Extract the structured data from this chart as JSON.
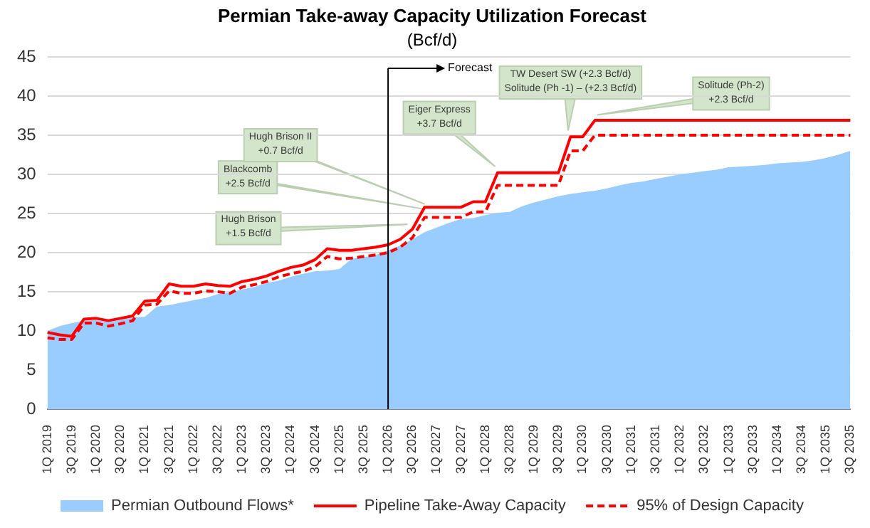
{
  "chart_data": {
    "type": "line",
    "title": "Permian Take-away Capacity Utilization Forecast",
    "subtitle": "(Bcf/d)",
    "categories": [
      "1Q 2019",
      null,
      "3Q 2019",
      null,
      "1Q 2020",
      null,
      "3Q 2020",
      null,
      "1Q 2021",
      null,
      "3Q 2021",
      null,
      "1Q 2022",
      null,
      "3Q 2022",
      null,
      "1Q 2023",
      null,
      "3Q 2023",
      null,
      "1Q 2024",
      null,
      "3Q 2024",
      null,
      "1Q 2025",
      null,
      "3Q 2025",
      null,
      "1Q 2026",
      null,
      "3Q 2026",
      null,
      "1Q 2027",
      null,
      "3Q 2027",
      null,
      "1Q 2028",
      null,
      "3Q 2028",
      null,
      "1Q 2029",
      null,
      "3Q 2029",
      null,
      "1Q 2030",
      null,
      "3Q 2030",
      null,
      "1Q 2031",
      null,
      "3Q 2031",
      null,
      "1Q 2032",
      null,
      "3Q 2032",
      null,
      "1Q 2033",
      null,
      "3Q 2033",
      null,
      "1Q 2034",
      null,
      "3Q 2034",
      null,
      "1Q 2035",
      null,
      "3Q 2035"
    ],
    "series": [
      {
        "name": "Permian Outbound Flows*",
        "type": "area",
        "color": "#99ccff",
        "values": [
          10.0,
          10.6,
          11.0,
          11.3,
          11.4,
          11.1,
          11.4,
          11.7,
          11.8,
          13.1,
          13.3,
          13.6,
          13.9,
          14.2,
          14.7,
          14.9,
          15.3,
          15.6,
          16.1,
          16.4,
          16.9,
          17.3,
          17.6,
          17.7,
          17.9,
          19.2,
          19.4,
          19.7,
          20.3,
          20.9,
          21.7,
          22.6,
          23.2,
          23.8,
          24.3,
          24.4,
          24.8,
          25.1,
          25.2,
          25.9,
          26.4,
          26.8,
          27.2,
          27.5,
          27.7,
          27.9,
          28.2,
          28.6,
          28.9,
          29.1,
          29.4,
          29.7,
          30.0,
          30.2,
          30.4,
          30.6,
          30.9,
          31.0,
          31.1,
          31.2,
          31.4,
          31.5,
          31.6,
          31.8,
          32.1,
          32.5,
          33.0
        ]
      },
      {
        "name": "Pipeline Take-Away Capacity",
        "type": "line",
        "line_style": "solid",
        "color": "#ff0000",
        "values": [
          9.8,
          9.5,
          9.3,
          11.5,
          11.6,
          11.3,
          11.6,
          11.9,
          13.8,
          13.9,
          16.0,
          15.7,
          15.7,
          16.0,
          15.8,
          15.7,
          16.3,
          16.6,
          17.0,
          17.6,
          18.1,
          18.4,
          19.1,
          20.5,
          20.3,
          20.3,
          20.5,
          20.7,
          21.0,
          21.7,
          23.0,
          25.8,
          25.8,
          25.8,
          25.8,
          26.5,
          26.5,
          30.2,
          30.2,
          30.2,
          30.2,
          30.2,
          30.2,
          34.8,
          34.8,
          36.9,
          36.9,
          36.9,
          36.9,
          36.9,
          36.9,
          36.9,
          36.9,
          36.9,
          36.9,
          36.9,
          36.9,
          36.9,
          36.9,
          36.9,
          36.9,
          36.9,
          36.9,
          36.9,
          36.9,
          36.9,
          36.9
        ]
      },
      {
        "name": "95% of Design Capacity",
        "type": "line",
        "line_style": "dashed",
        "color": "#ff0000",
        "values": [
          9.1,
          8.9,
          8.9,
          11.0,
          11.0,
          10.6,
          10.9,
          11.3,
          13.3,
          13.4,
          15.1,
          14.8,
          14.8,
          15.1,
          15.0,
          14.8,
          15.6,
          15.9,
          16.3,
          16.9,
          17.3,
          17.6,
          18.2,
          19.5,
          19.2,
          19.3,
          19.5,
          19.7,
          20.0,
          20.7,
          21.9,
          24.5,
          24.5,
          24.5,
          24.5,
          25.2,
          25.2,
          28.6,
          28.6,
          28.6,
          28.6,
          28.6,
          28.6,
          33.0,
          33.0,
          35.0,
          35.0,
          35.0,
          35.0,
          35.0,
          35.0,
          35.0,
          35.0,
          35.0,
          35.0,
          35.0,
          35.0,
          35.0,
          35.0,
          35.0,
          35.0,
          35.0,
          35.0,
          35.0,
          35.0,
          35.0,
          35.0
        ]
      }
    ],
    "ylim": [
      0,
      45
    ],
    "yticks": [
      0,
      5,
      10,
      15,
      20,
      25,
      30,
      35,
      40,
      45
    ],
    "grid": "y",
    "legend": "bottom",
    "marker": "none",
    "ref_lines": [
      {
        "axis": "x",
        "value": "1Q 2026",
        "label": "Forecast",
        "color": "#000000"
      }
    ],
    "annotations": [
      "Hugh Brison\n+1.5 Bcf/d",
      "Blackcomb\n+2.5 Bcf/d",
      "Hugh Brison II\n+0.7 Bcf/d",
      "Eiger Express\n+3.7 Bcf/d",
      "TW Desert SW (+2.3 Bcf/d)\nSolitude (Ph -1) – (+2.3 Bcf/d)",
      "Solitude (Ph-2)\n+2.3 Bcf/d"
    ]
  }
}
